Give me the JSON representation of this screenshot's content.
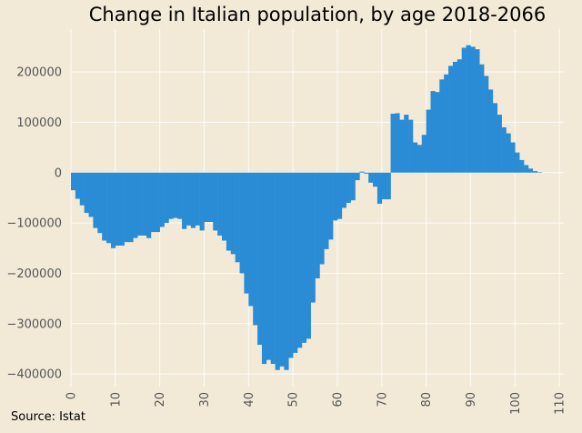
{
  "chart_data": {
    "type": "bar",
    "title": "Change in Italian population, by age 2018-2066",
    "source": "Source: Istat",
    "xlabel": "",
    "ylabel": "",
    "xlim": [
      0,
      111
    ],
    "ylim": [
      -425000,
      285000
    ],
    "bar_color": "#2b8cd6",
    "background": "#f2ead7",
    "grid": true,
    "x_ticks": [
      0,
      10,
      20,
      30,
      40,
      50,
      60,
      70,
      80,
      90,
      100,
      110
    ],
    "x_tick_labels": [
      "0",
      "10",
      "20",
      "30",
      "40",
      "50",
      "60",
      "70",
      "80",
      "90",
      "100",
      "110"
    ],
    "y_ticks": [
      -400000,
      -300000,
      -200000,
      -100000,
      0,
      100000,
      200000
    ],
    "y_tick_labels": [
      "−400000",
      "−300000",
      "−200000",
      "−100000",
      "0",
      "100000",
      "200000"
    ],
    "x": [
      0,
      1,
      2,
      3,
      4,
      5,
      6,
      7,
      8,
      9,
      10,
      11,
      12,
      13,
      14,
      15,
      16,
      17,
      18,
      19,
      20,
      21,
      22,
      23,
      24,
      25,
      26,
      27,
      28,
      29,
      30,
      31,
      32,
      33,
      34,
      35,
      36,
      37,
      38,
      39,
      40,
      41,
      42,
      43,
      44,
      45,
      46,
      47,
      48,
      49,
      50,
      51,
      52,
      53,
      54,
      55,
      56,
      57,
      58,
      59,
      60,
      61,
      62,
      63,
      64,
      65,
      66,
      67,
      68,
      69,
      70,
      71,
      72,
      73,
      74,
      75,
      76,
      77,
      78,
      79,
      80,
      81,
      82,
      83,
      84,
      85,
      86,
      87,
      88,
      89,
      90,
      91,
      92,
      93,
      94,
      95,
      96,
      97,
      98,
      99,
      100,
      101,
      102,
      103,
      104,
      105
    ],
    "values": [
      -35000,
      -52000,
      -65000,
      -80000,
      -88000,
      -110000,
      -120000,
      -135000,
      -140000,
      -150000,
      -145000,
      -145000,
      -138000,
      -138000,
      -130000,
      -125000,
      -125000,
      -130000,
      -118000,
      -118000,
      -108000,
      -100000,
      -92000,
      -90000,
      -92000,
      -112000,
      -105000,
      -110000,
      -105000,
      -115000,
      -98000,
      -98000,
      -115000,
      -125000,
      -135000,
      -155000,
      -162000,
      -178000,
      -200000,
      -240000,
      -265000,
      -303000,
      -342000,
      -380000,
      -372000,
      -380000,
      -392000,
      -385000,
      -392000,
      -368000,
      -358000,
      -348000,
      -338000,
      -330000,
      -258000,
      -210000,
      -182000,
      -152000,
      -133000,
      -95000,
      -92000,
      -70000,
      -60000,
      -55000,
      -15000,
      2000,
      -2000,
      -20000,
      -28000,
      -62000,
      -53000,
      -53000,
      117000,
      118000,
      105000,
      115000,
      105000,
      60000,
      55000,
      75000,
      125000,
      162000,
      160000,
      185000,
      195000,
      212000,
      220000,
      225000,
      248000,
      253000,
      250000,
      245000,
      215000,
      192000,
      165000,
      138000,
      115000,
      90000,
      78000,
      60000,
      40000,
      25000,
      15000,
      8000,
      3000,
      1000
    ]
  }
}
